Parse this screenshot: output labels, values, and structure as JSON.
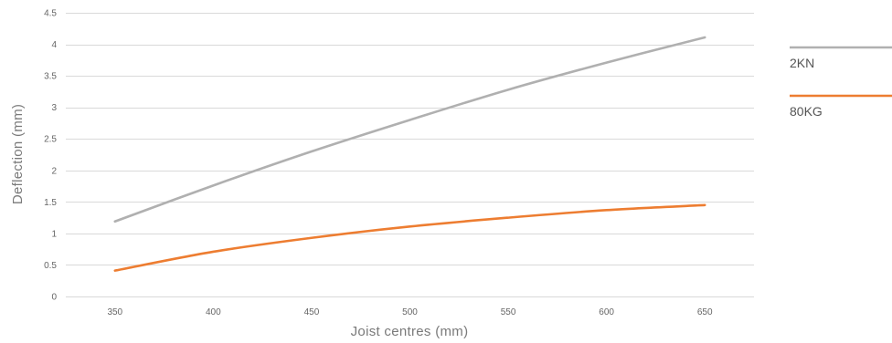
{
  "chart_data": {
    "type": "line",
    "title": "",
    "xlabel": "Joist centres (mm)",
    "ylabel": "Deflection (mm)",
    "xlim": [
      325,
      675
    ],
    "ylim": [
      0,
      4.5
    ],
    "x_ticks": [
      350,
      400,
      450,
      500,
      550,
      600,
      650
    ],
    "y_ticks": [
      0,
      0.5,
      1,
      1.5,
      2,
      2.5,
      3,
      3.5,
      4,
      4.5
    ],
    "grid": "horizontal",
    "legend_position": "right",
    "series": [
      {
        "name": "2KN",
        "color": "#b0b0b0",
        "x": [
          350,
          400,
          450,
          500,
          550,
          600,
          650
        ],
        "values": [
          1.19,
          1.76,
          2.3,
          2.8,
          3.28,
          3.71,
          4.11
        ]
      },
      {
        "name": "80KG",
        "color": "#ed7d31",
        "x": [
          350,
          400,
          450,
          500,
          550,
          600,
          650
        ],
        "values": [
          0.41,
          0.71,
          0.93,
          1.11,
          1.25,
          1.37,
          1.45
        ]
      }
    ]
  }
}
